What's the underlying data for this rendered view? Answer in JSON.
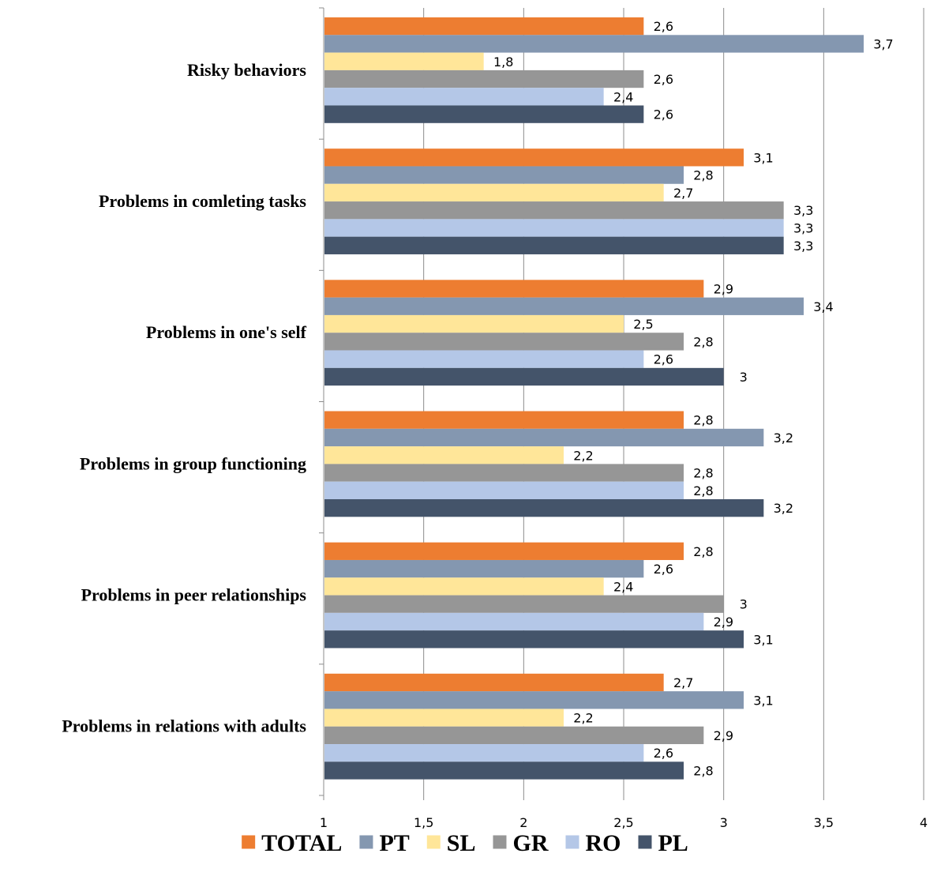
{
  "chart_data": {
    "type": "bar",
    "orientation": "horizontal",
    "categories": [
      "Risky behaviors",
      "Problems in comleting tasks",
      "Problems in one's self",
      "Problems in group functioning",
      "Problems in peer relationships",
      "Problems in relations with adults"
    ],
    "series": [
      {
        "name": "TOTAL",
        "color": "#ED7D31",
        "values": [
          2.6,
          3.1,
          2.9,
          2.8,
          2.8,
          2.7
        ],
        "labels": [
          "2,6",
          "3,1",
          "2,9",
          "2,8",
          "2,8",
          "2,7"
        ]
      },
      {
        "name": "PT",
        "color": "#8497B0",
        "values": [
          3.7,
          2.8,
          3.4,
          3.2,
          2.6,
          3.1
        ],
        "labels": [
          "3,7",
          "2,8",
          "3,4",
          "3,2",
          "2,6",
          "3,1"
        ]
      },
      {
        "name": "SL",
        "color": "#FFE699",
        "values": [
          1.8,
          2.7,
          2.5,
          2.2,
          2.4,
          2.2
        ],
        "labels": [
          "1,8",
          "2,7",
          "2,5",
          "2,2",
          "2,4",
          "2,2"
        ]
      },
      {
        "name": "GR",
        "color": "#969696",
        "values": [
          2.6,
          3.3,
          2.8,
          2.8,
          3.0,
          2.9
        ],
        "labels": [
          "2,6",
          "3,3",
          "2,8",
          "2,8",
          "3",
          "2,9"
        ]
      },
      {
        "name": "RO",
        "color": "#B4C7E7",
        "values": [
          2.4,
          3.3,
          2.6,
          2.8,
          2.9,
          2.6
        ],
        "labels": [
          "2,4",
          "3,3",
          "2,6",
          "2,8",
          "2,9",
          "2,6"
        ]
      },
      {
        "name": "PL",
        "color": "#44546A",
        "values": [
          2.6,
          3.3,
          3.0,
          3.2,
          3.1,
          2.8
        ],
        "labels": [
          "2,6",
          "3,3",
          "3",
          "3,2",
          "3,1",
          "2,8"
        ]
      }
    ],
    "xlim": [
      1,
      4
    ],
    "xticks": [
      1,
      1.5,
      2,
      2.5,
      3,
      3.5,
      4
    ],
    "xtick_labels": [
      "1",
      "1,5",
      "2",
      "2,5",
      "3",
      "3,5",
      "4"
    ],
    "grid": "vertical",
    "legend": "bottom",
    "title": "",
    "xlabel": "",
    "ylabel": ""
  }
}
